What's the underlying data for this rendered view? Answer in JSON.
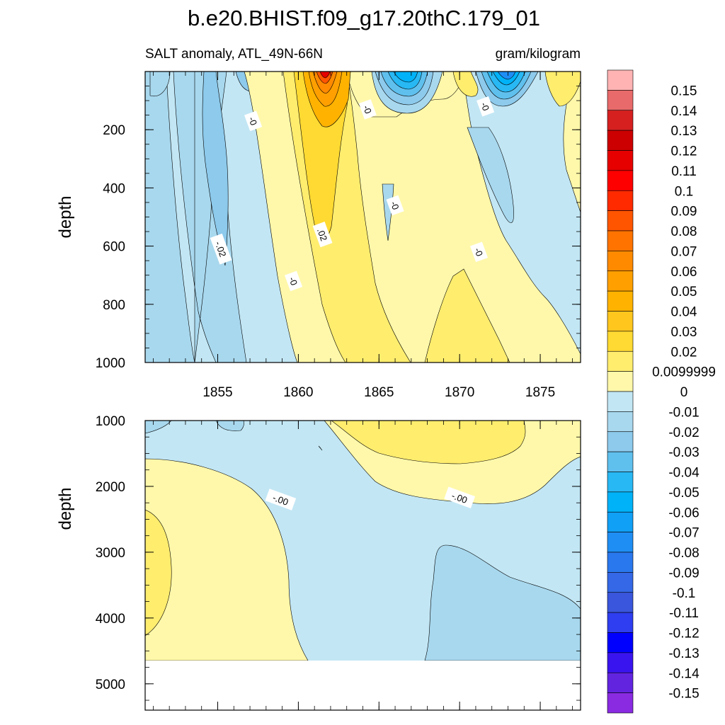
{
  "chart_data": {
    "type": "contour",
    "title": "b.e20.BHIST.f09_g17.20thC.179_01",
    "subtitle_left": "SALT anomaly, ATL_49N-66N",
    "subtitle_right": "gram/kilogram",
    "xlim": [
      1850.5,
      1877.5
    ],
    "x_ticks": [
      1855,
      1860,
      1865,
      1870,
      1875
    ],
    "x_tick_labels": [
      "1855",
      "1860",
      "1865",
      "1870",
      "1875"
    ],
    "panels": [
      {
        "name": "upper",
        "ylabel": "depth",
        "ylim": [
          0,
          1000
        ],
        "y_ticks": [
          200,
          400,
          600,
          800,
          1000
        ],
        "y_tick_labels": [
          "200",
          "400",
          "600",
          "800",
          "1000"
        ],
        "contour_labels": [
          {
            "text": "-0",
            "x": 1857.2,
            "y": 170
          },
          {
            "text": "-0",
            "x": 1864.3,
            "y": 130
          },
          {
            "text": "-0",
            "x": 1871.6,
            "y": 120
          },
          {
            "text": "-0",
            "x": 1866.0,
            "y": 460
          },
          {
            "text": ".02",
            "x": 1861.5,
            "y": 560
          },
          {
            "text": "-.02",
            "x": 1855.2,
            "y": 610
          },
          {
            "text": "-0",
            "x": 1859.7,
            "y": 720
          },
          {
            "text": "-0",
            "x": 1871.2,
            "y": 620
          }
        ]
      },
      {
        "name": "lower",
        "ylabel": "depth",
        "ylim": [
          1000,
          5400
        ],
        "y_ticks": [
          1000,
          2000,
          3000,
          4000,
          5000
        ],
        "y_tick_labels": [
          "1000",
          "2000",
          "3000",
          "4000",
          "5000"
        ],
        "contour_labels": [
          {
            "text": "-.00",
            "x": 1858.9,
            "y": 2200
          },
          {
            "text": "-.00",
            "x": 1870.0,
            "y": 2170
          }
        ]
      }
    ],
    "colorbar": {
      "labels": [
        "0.15",
        "0.14",
        "0.13",
        "0.12",
        "0.11",
        "0.1",
        "0.09",
        "0.08",
        "0.07",
        "0.06",
        "0.05",
        "0.04",
        "0.03",
        "0.02",
        "0.0099999",
        "0",
        "-0.01",
        "-0.02",
        "-0.03",
        "-0.04",
        "-0.05",
        "-0.06",
        "-0.07",
        "-0.08",
        "-0.09",
        "-0.1",
        "-0.11",
        "-0.12",
        "-0.13",
        "-0.14",
        "-0.15"
      ],
      "colors": [
        "#ffb3b3",
        "#e86a6a",
        "#d62020",
        "#cc0000",
        "#e60000",
        "#ff0000",
        "#ff2a00",
        "#ff5500",
        "#ff7300",
        "#ff8a00",
        "#ffa000",
        "#ffb300",
        "#ffc61e",
        "#ffda32",
        "#ffed6e",
        "#fff8aa",
        "#c2e6f4",
        "#a8d8ee",
        "#8dcaec",
        "#5fc0ee",
        "#28b8f4",
        "#00b2f8",
        "#10a0f6",
        "#1f8ef4",
        "#2a78ee",
        "#3468e6",
        "#3a56dc",
        "#2e3ef0",
        "#0000ff",
        "#3a14ee",
        "#6324e0",
        "#8a2be2"
      ]
    },
    "fill_colors": {
      "neutral_neg": "#c2e6f4",
      "neg_1": "#a8d8ee",
      "neg_2": "#8dcaec",
      "neg_3": "#5fc0ee",
      "neg_4": "#28b8f4",
      "neg_5": "#00b2f8",
      "neg_6": "#1f8ef4",
      "pos_1": "#fff8aa",
      "pos_2": "#ffed6e",
      "pos_3": "#ffda32",
      "pos_4": "#ffc61e",
      "pos_5": "#ffb300",
      "pos_6": "#ffa000",
      "pos_7": "#ff8a00",
      "pos_8": "#ff5500",
      "pos_9": "#e60000"
    }
  }
}
